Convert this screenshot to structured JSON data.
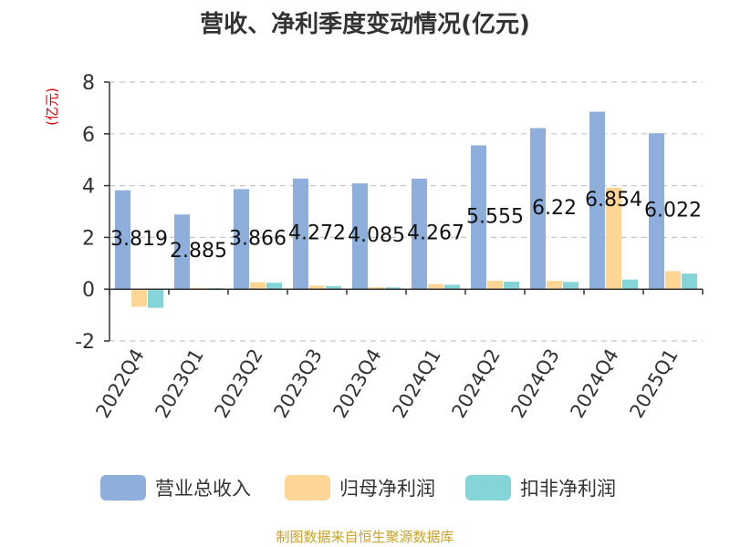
{
  "chart_data": {
    "type": "bar",
    "title": "营收、净利季度变动情况(亿元)",
    "ylabel": "(亿元)",
    "xlabel": "",
    "ylim": [
      -2,
      8
    ],
    "yticks": [
      -2,
      0,
      2,
      4,
      6,
      8
    ],
    "grid": true,
    "legend_position": "bottom",
    "categories": [
      "2022Q4",
      "2023Q1",
      "2023Q2",
      "2023Q3",
      "2023Q4",
      "2024Q1",
      "2024Q2",
      "2024Q3",
      "2024Q4",
      "2025Q1"
    ],
    "series": [
      {
        "name": "营业总收入",
        "color": "#8eaedc",
        "values": [
          3.819,
          2.885,
          3.866,
          4.272,
          4.085,
          4.267,
          5.555,
          6.22,
          6.854,
          6.022
        ]
      },
      {
        "name": "归母净利润",
        "color": "#fdd695",
        "values": [
          -0.68,
          0.05,
          0.27,
          0.14,
          0.08,
          0.2,
          0.32,
          0.32,
          3.92,
          0.7
        ]
      },
      {
        "name": "扣非净利润",
        "color": "#84d4d8",
        "values": [
          -0.72,
          0.04,
          0.25,
          0.12,
          0.07,
          0.17,
          0.29,
          0.28,
          0.37,
          0.6
        ]
      }
    ],
    "data_labels": [
      "3.819",
      "2.885",
      "3.866",
      "4.272",
      "4.085",
      "4.267",
      "5.555",
      "6.22",
      "6.854",
      "6.022"
    ]
  },
  "source": "制图数据来自恒生聚源数据库"
}
